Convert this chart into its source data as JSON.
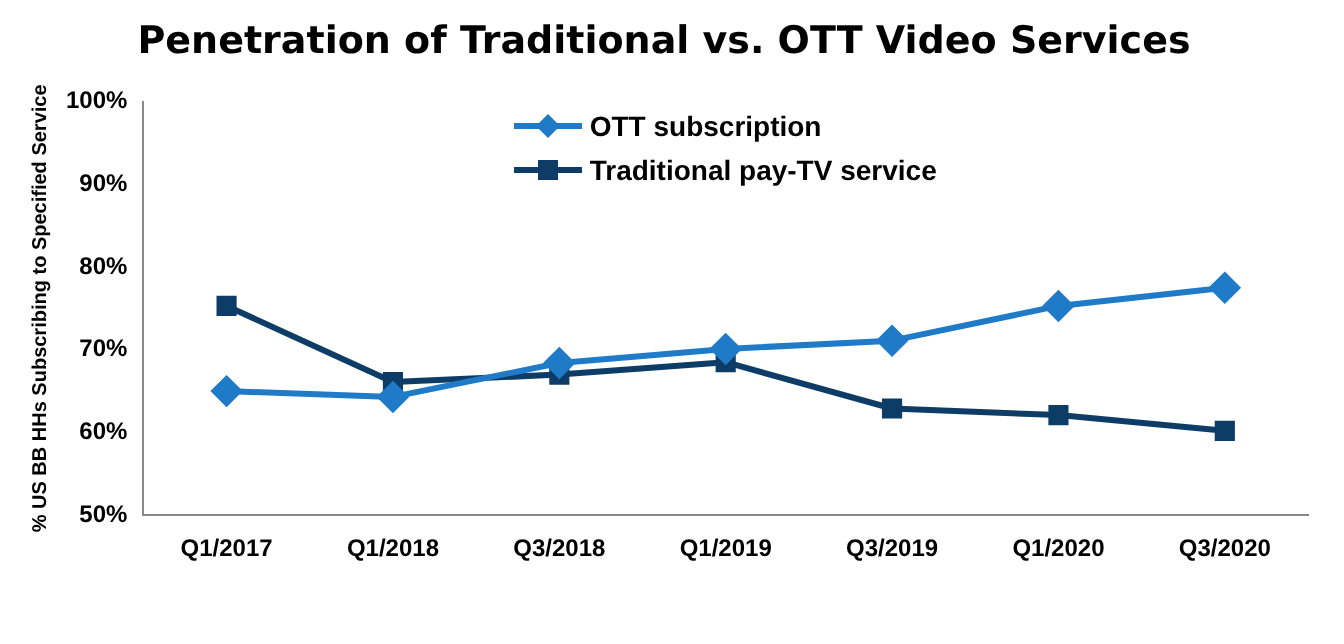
{
  "chart_data": {
    "type": "line",
    "title": "Penetration of Traditional vs. OTT Video Services",
    "ylabel": "% US BB HHs Subscribing to Specified Service",
    "categories": [
      "Q1/2017",
      "Q1/2018",
      "Q3/2018",
      "Q1/2019",
      "Q3/2019",
      "Q1/2020",
      "Q3/2020"
    ],
    "series": [
      {
        "name": "OTT subscription",
        "color": "#1f7bc8",
        "marker": "diamond",
        "values": [
          65,
          64.3,
          68.4,
          70.1,
          71.1,
          75.3,
          77.5
        ]
      },
      {
        "name": "Traditional pay-TV service",
        "color": "#0d3c66",
        "marker": "square",
        "values": [
          75.3,
          66.1,
          67,
          68.5,
          62.9,
          62.1,
          60.2
        ]
      }
    ],
    "ylim": [
      50,
      100
    ],
    "yticks": [
      {
        "value": 50,
        "label": "50%"
      },
      {
        "value": 60,
        "label": "60%"
      },
      {
        "value": 70,
        "label": "70%"
      },
      {
        "value": 80,
        "label": "80%"
      },
      {
        "value": 90,
        "label": "90%"
      },
      {
        "value": 100,
        "label": "100%"
      }
    ],
    "grid": false,
    "legend": "top",
    "line_style": "solid"
  }
}
